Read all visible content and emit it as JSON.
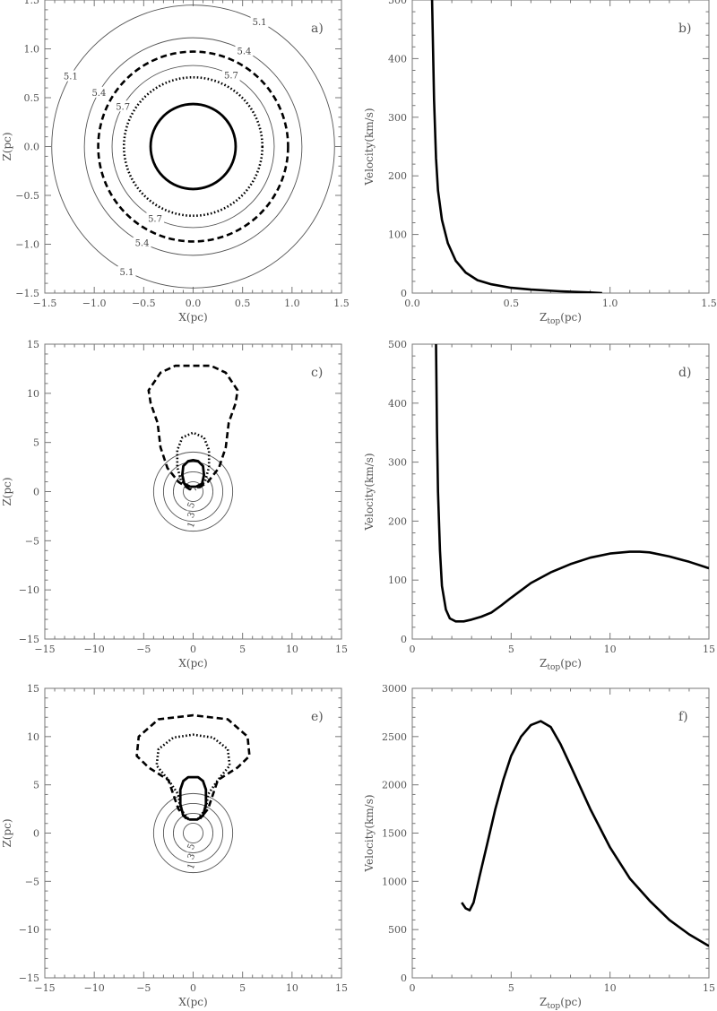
{
  "chart_data": [
    {
      "panel": "a)",
      "type": "contour",
      "xlabel": "X(pc)",
      "ylabel": "Z(pc)",
      "xlim": [
        -1.5,
        1.5
      ],
      "ylim": [
        -1.5,
        1.5
      ],
      "xticks": [
        -1.5,
        -1.0,
        -0.5,
        0.0,
        0.5,
        1.0,
        1.5
      ],
      "yticks": [
        -1.5,
        -1.0,
        -0.5,
        0.0,
        0.5,
        1.0,
        1.5
      ],
      "xtick_labels": [
        "−1.5",
        "−1.0",
        "−0.5",
        "0.0",
        "0.5",
        "1.0",
        "1.5"
      ],
      "ytick_labels": [
        "−1.5",
        "−1.0",
        "−0.5",
        "0.0",
        "0.5",
        "1.0",
        "1.5"
      ],
      "contours": [
        {
          "label": "5.1",
          "radius": 1.43,
          "style": "thin"
        },
        {
          "label": "5.4",
          "radius": 1.1,
          "style": "thin"
        },
        {
          "label": "",
          "radius": 0.96,
          "style": "dashed"
        },
        {
          "label": "5.7",
          "radius": 0.82,
          "style": "thin"
        },
        {
          "label": "",
          "radius": 0.7,
          "style": "dotted"
        },
        {
          "label": "",
          "radius": 0.43,
          "style": "thick"
        }
      ]
    },
    {
      "panel": "b)",
      "type": "line",
      "xlabel_main": "Z",
      "xlabel_sub": "top",
      "xlabel_unit": "(pc)",
      "ylabel": "Velocity(km/s)",
      "xlim": [
        0,
        1.5
      ],
      "ylim": [
        0,
        500
      ],
      "xticks": [
        0.0,
        0.5,
        1.0,
        1.5
      ],
      "yticks": [
        0,
        100,
        200,
        300,
        400,
        500
      ],
      "xtick_labels": [
        "0.0",
        "0.5",
        "1.0",
        "1.5"
      ],
      "ytick_labels": [
        "0",
        "100",
        "200",
        "300",
        "400",
        "500"
      ],
      "x": [
        0.1,
        0.11,
        0.12,
        0.13,
        0.15,
        0.18,
        0.22,
        0.27,
        0.33,
        0.4,
        0.5,
        0.6,
        0.75,
        0.9,
        0.96
      ],
      "y": [
        500,
        330,
        230,
        175,
        125,
        85,
        55,
        35,
        22,
        15,
        9,
        6,
        3,
        1,
        0
      ]
    },
    {
      "panel": "c)",
      "type": "contour",
      "xlabel": "X(pc)",
      "ylabel": "Z(pc)",
      "xlim": [
        -15,
        15
      ],
      "ylim": [
        -15,
        15
      ],
      "xticks": [
        -15,
        -10,
        -5,
        0,
        5,
        10,
        15
      ],
      "yticks": [
        -15,
        -10,
        -5,
        0,
        5,
        10,
        15
      ],
      "xtick_labels": [
        "−15",
        "−10",
        "−5",
        "0",
        "5",
        "10",
        "15"
      ],
      "ytick_labels": [
        "−15",
        "−10",
        "−5",
        "0",
        "5",
        "10",
        "15"
      ],
      "circles": [
        {
          "label": "1",
          "radius": 4.0
        },
        {
          "label": "3",
          "radius": 3.0
        },
        {
          "label": "5",
          "radius": 2.0
        },
        {
          "label": "",
          "radius": 1.0
        }
      ],
      "curves": [
        {
          "style": "dashed",
          "points": [
            [
              -0.3,
              0.2
            ],
            [
              -1.5,
              1
            ],
            [
              -2.6,
              2.4
            ],
            [
              -3.3,
              4.5
            ],
            [
              -3.6,
              7
            ],
            [
              -4.3,
              9
            ],
            [
              -4.5,
              10.3
            ],
            [
              -3.3,
              12.1
            ],
            [
              -1.8,
              12.8
            ],
            [
              1.8,
              12.8
            ],
            [
              3.3,
              12.1
            ],
            [
              4.5,
              10.3
            ],
            [
              4.3,
              9
            ],
            [
              3.6,
              7
            ],
            [
              3.3,
              4.5
            ],
            [
              2.6,
              2.4
            ],
            [
              1.5,
              1
            ],
            [
              0.3,
              0.2
            ]
          ]
        },
        {
          "style": "dotted",
          "points": [
            [
              -0.2,
              0.2
            ],
            [
              -1.2,
              1
            ],
            [
              -1.6,
              2.5
            ],
            [
              -1.6,
              4.2
            ],
            [
              -1.1,
              5.5
            ],
            [
              0,
              6
            ],
            [
              1.1,
              5.5
            ],
            [
              1.6,
              4.2
            ],
            [
              1.6,
              2.5
            ],
            [
              1.2,
              1
            ],
            [
              0.2,
              0.2
            ]
          ]
        },
        {
          "style": "thick",
          "points": [
            [
              -0.3,
              0.5
            ],
            [
              -0.9,
              0.8
            ],
            [
              -1.1,
              1.7
            ],
            [
              -1.0,
              2.6
            ],
            [
              -0.5,
              3.1
            ],
            [
              0,
              3.2
            ],
            [
              0.5,
              3.1
            ],
            [
              1.0,
              2.6
            ],
            [
              1.1,
              1.7
            ],
            [
              0.9,
              0.8
            ],
            [
              0.3,
              0.5
            ],
            [
              -0.3,
              0.5
            ]
          ]
        }
      ]
    },
    {
      "panel": "d)",
      "type": "line",
      "xlabel_main": "Z",
      "xlabel_sub": "top",
      "xlabel_unit": "(pc)",
      "ylabel": "Velocity(km/s)",
      "xlim": [
        0,
        15
      ],
      "ylim": [
        0,
        500
      ],
      "xticks": [
        0,
        5,
        10,
        15
      ],
      "yticks": [
        0,
        100,
        200,
        300,
        400,
        500
      ],
      "xtick_labels": [
        "0",
        "5",
        "10",
        "15"
      ],
      "ytick_labels": [
        "0",
        "100",
        "200",
        "300",
        "400",
        "500"
      ],
      "x": [
        1.2,
        1.25,
        1.3,
        1.4,
        1.5,
        1.7,
        1.9,
        2.2,
        2.6,
        3.0,
        3.5,
        4.0,
        4.5,
        5.0,
        6.0,
        7.0,
        8.0,
        9.0,
        10.0,
        11.0,
        11.5,
        12.0,
        13.0,
        14.0,
        15.0
      ],
      "y": [
        500,
        350,
        250,
        150,
        90,
        50,
        35,
        30,
        30,
        33,
        38,
        45,
        57,
        70,
        95,
        113,
        127,
        138,
        145,
        148,
        148,
        147,
        140,
        131,
        120
      ]
    },
    {
      "panel": "e)",
      "type": "contour",
      "xlabel": "X(pc)",
      "ylabel": "Z(pc)",
      "xlim": [
        -15,
        15
      ],
      "ylim": [
        -15,
        15
      ],
      "xticks": [
        -15,
        -10,
        -5,
        0,
        5,
        10,
        15
      ],
      "yticks": [
        -15,
        -10,
        -5,
        0,
        5,
        10,
        15
      ],
      "xtick_labels": [
        "−15",
        "−10",
        "−5",
        "0",
        "5",
        "10",
        "15"
      ],
      "ytick_labels": [
        "−15",
        "−10",
        "−5",
        "0",
        "5",
        "10",
        "15"
      ],
      "circles": [
        {
          "label": "1",
          "radius": 4.0
        },
        {
          "label": "3",
          "radius": 3.0
        },
        {
          "label": "5",
          "radius": 2.0
        },
        {
          "label": "",
          "radius": 1.0
        }
      ],
      "curves": [
        {
          "style": "dashed",
          "points": [
            [
              -0.7,
              1.5
            ],
            [
              -1.5,
              2.5
            ],
            [
              -2.0,
              4.0
            ],
            [
              -2.5,
              5.5
            ],
            [
              -4.5,
              6.8
            ],
            [
              -5.7,
              8.0
            ],
            [
              -5.5,
              10.0
            ],
            [
              -3.5,
              11.8
            ],
            [
              0,
              12.2
            ],
            [
              3.5,
              11.8
            ],
            [
              5.5,
              10.0
            ],
            [
              5.7,
              8.0
            ],
            [
              4.5,
              6.8
            ],
            [
              2.5,
              5.5
            ],
            [
              2.0,
              4.0
            ],
            [
              1.5,
              2.5
            ],
            [
              0.7,
              1.5
            ]
          ]
        },
        {
          "style": "dotted",
          "points": [
            [
              -0.5,
              1.5
            ],
            [
              -1.3,
              2.5
            ],
            [
              -1.5,
              4.0
            ],
            [
              -2.5,
              5.5
            ],
            [
              -3.7,
              7.0
            ],
            [
              -3.5,
              8.7
            ],
            [
              -2.0,
              9.9
            ],
            [
              0,
              10.2
            ],
            [
              2.0,
              9.9
            ],
            [
              3.5,
              8.7
            ],
            [
              3.7,
              7.0
            ],
            [
              2.5,
              5.5
            ],
            [
              1.5,
              4.0
            ],
            [
              1.3,
              2.5
            ],
            [
              0.5,
              1.5
            ]
          ]
        },
        {
          "style": "thick",
          "points": [
            [
              -0.4,
              1.4
            ],
            [
              -1.0,
              1.8
            ],
            [
              -1.3,
              3.0
            ],
            [
              -1.3,
              4.5
            ],
            [
              -1.0,
              5.4
            ],
            [
              -0.5,
              5.8
            ],
            [
              0.5,
              5.8
            ],
            [
              1.0,
              5.4
            ],
            [
              1.3,
              4.5
            ],
            [
              1.3,
              3.0
            ],
            [
              1.0,
              1.8
            ],
            [
              0.4,
              1.4
            ],
            [
              -0.4,
              1.4
            ]
          ]
        }
      ]
    },
    {
      "panel": "f)",
      "type": "line",
      "xlabel_main": "Z",
      "xlabel_sub": "top",
      "xlabel_unit": "(pc)",
      "ylabel": "Velocity(km/s)",
      "xlim": [
        0,
        15
      ],
      "ylim": [
        0,
        3000
      ],
      "xticks": [
        0,
        5,
        10,
        15
      ],
      "yticks": [
        0,
        500,
        1000,
        1500,
        2000,
        2500,
        3000
      ],
      "xtick_labels": [
        "0",
        "5",
        "10",
        "15"
      ],
      "ytick_labels": [
        "0",
        "500",
        "1000",
        "1500",
        "2000",
        "2500",
        "3000"
      ],
      "x": [
        2.5,
        2.7,
        2.9,
        3.1,
        3.4,
        3.8,
        4.2,
        4.6,
        5.0,
        5.5,
        6.0,
        6.5,
        7.0,
        7.5,
        8.0,
        9.0,
        10.0,
        11.0,
        12.0,
        13.0,
        14.0,
        15.0
      ],
      "y": [
        780,
        720,
        700,
        780,
        1050,
        1400,
        1750,
        2050,
        2300,
        2500,
        2620,
        2660,
        2600,
        2420,
        2200,
        1750,
        1350,
        1030,
        800,
        600,
        450,
        330
      ]
    }
  ]
}
